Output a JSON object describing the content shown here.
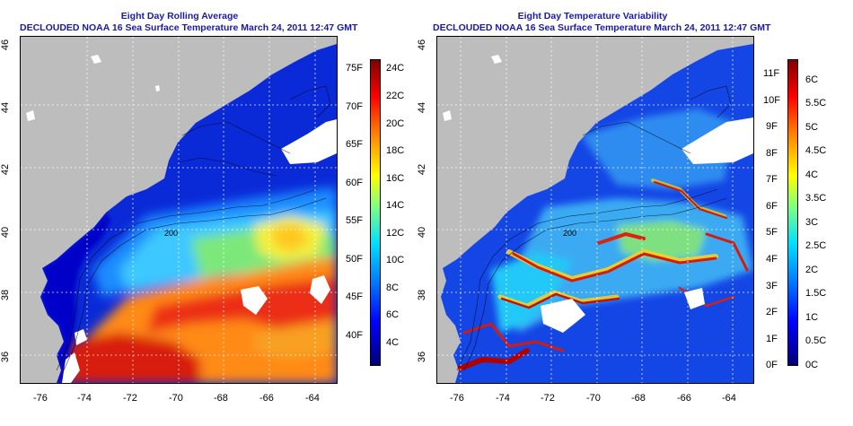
{
  "left": {
    "title_line1": "Eight Day Rolling Average",
    "title_line2": "DECLOUDED NOAA 16 Sea Surface Temperature March 24, 2011 12:47 GMT",
    "colorbar_left_labels": [
      "75F",
      "70F",
      "65F",
      "60F",
      "55F",
      "50F",
      "45F",
      "40F"
    ],
    "colorbar_right_labels": [
      "24C",
      "22C",
      "20C",
      "18C",
      "16C",
      "14C",
      "12C",
      "10C",
      "8C",
      "6C",
      "4C"
    ]
  },
  "right": {
    "title_line1": "Eight Day Temperature Variability",
    "title_line2": "DECLOUDED NOAA 16 Sea Surface Temperature March 24, 2011 12:47 GMT",
    "colorbar_left_labels": [
      "11F",
      "10F",
      "9F",
      "8F",
      "7F",
      "6F",
      "5F",
      "4F",
      "3F",
      "2F",
      "1F",
      "0F"
    ],
    "colorbar_right_labels": [
      "6C",
      "5.5C",
      "5C",
      "4.5C",
      "4C",
      "3.5C",
      "3C",
      "2.5C",
      "2C",
      "1.5C",
      "1C",
      "0.5C",
      "0C"
    ]
  },
  "axes": {
    "lat_labels": [
      "46",
      "44",
      "42",
      "40",
      "38",
      "36"
    ],
    "lon_labels": [
      "-76",
      "-74",
      "-72",
      "-70",
      "-68",
      "-66",
      "-64"
    ]
  },
  "contour_labels": [
    "200",
    "200"
  ],
  "colors": {
    "title": "#1a1aa8",
    "land": "#bdbdbd",
    "sst_scale": [
      "#00007a",
      "#0000ff",
      "#0080ff",
      "#00e0ff",
      "#80ff80",
      "#ffff00",
      "#ff8000",
      "#ff0000",
      "#800000"
    ]
  }
}
